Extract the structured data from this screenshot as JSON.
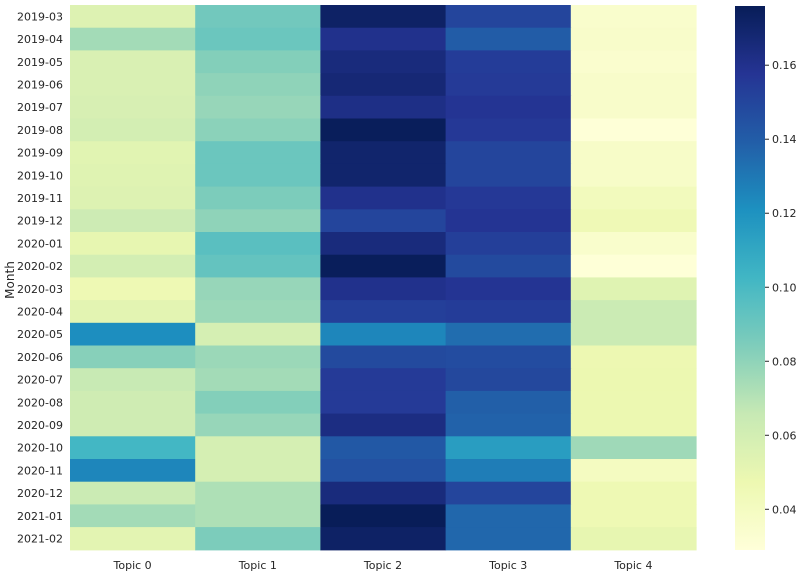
{
  "chart_data": {
    "type": "heatmap",
    "title": "",
    "xlabel": "",
    "ylabel": "Month",
    "x": [
      "Topic 0",
      "Topic 1",
      "Topic 2",
      "Topic 3",
      "Topic 4"
    ],
    "y": [
      "2019-03",
      "2019-04",
      "2019-05",
      "2019-06",
      "2019-07",
      "2019-08",
      "2019-09",
      "2019-10",
      "2019-11",
      "2019-12",
      "2020-01",
      "2020-02",
      "2020-03",
      "2020-04",
      "2020-05",
      "2020-06",
      "2020-07",
      "2020-08",
      "2020-09",
      "2020-10",
      "2020-11",
      "2020-12",
      "2021-01",
      "2021-02"
    ],
    "values": [
      [
        0.055,
        0.088,
        0.172,
        0.15,
        0.035
      ],
      [
        0.075,
        0.09,
        0.16,
        0.14,
        0.036
      ],
      [
        0.057,
        0.083,
        0.165,
        0.154,
        0.034
      ],
      [
        0.057,
        0.08,
        0.167,
        0.155,
        0.036
      ],
      [
        0.058,
        0.078,
        0.162,
        0.158,
        0.036
      ],
      [
        0.06,
        0.081,
        0.175,
        0.156,
        0.03
      ],
      [
        0.053,
        0.09,
        0.17,
        0.15,
        0.037
      ],
      [
        0.054,
        0.09,
        0.17,
        0.15,
        0.037
      ],
      [
        0.055,
        0.085,
        0.16,
        0.156,
        0.042
      ],
      [
        0.063,
        0.08,
        0.15,
        0.158,
        0.045
      ],
      [
        0.05,
        0.095,
        0.165,
        0.153,
        0.035
      ],
      [
        0.06,
        0.092,
        0.175,
        0.148,
        0.03
      ],
      [
        0.046,
        0.078,
        0.16,
        0.158,
        0.054
      ],
      [
        0.052,
        0.077,
        0.153,
        0.154,
        0.064
      ],
      [
        0.122,
        0.059,
        0.125,
        0.134,
        0.064
      ],
      [
        0.082,
        0.077,
        0.148,
        0.147,
        0.047
      ],
      [
        0.065,
        0.075,
        0.155,
        0.149,
        0.048
      ],
      [
        0.062,
        0.083,
        0.155,
        0.139,
        0.048
      ],
      [
        0.062,
        0.078,
        0.163,
        0.138,
        0.048
      ],
      [
        0.102,
        0.059,
        0.142,
        0.115,
        0.076
      ],
      [
        0.125,
        0.059,
        0.145,
        0.128,
        0.04
      ],
      [
        0.064,
        0.072,
        0.165,
        0.15,
        0.046
      ],
      [
        0.075,
        0.072,
        0.176,
        0.136,
        0.046
      ],
      [
        0.052,
        0.085,
        0.172,
        0.136,
        0.05
      ]
    ],
    "colorbar": {
      "colormap": "YlGnBu",
      "vmin": 0.029,
      "vmax": 0.176,
      "ticks": [
        "0.04",
        "0.06",
        "0.08",
        "0.10",
        "0.12",
        "0.14",
        "0.16"
      ]
    },
    "grid": false,
    "legend": "colorbar-right"
  }
}
